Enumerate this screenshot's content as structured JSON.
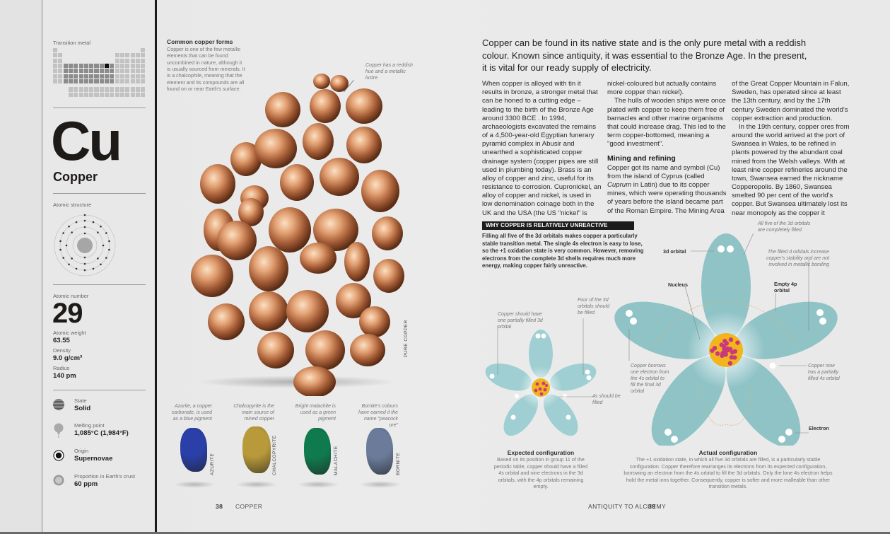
{
  "sidebar": {
    "category_label": "Transition metal",
    "symbol": "Cu",
    "element_name": "Copper",
    "atomic_structure_label": "Atomic structure",
    "electron_shells": [
      2,
      8,
      18,
      1
    ],
    "atomic_number_label": "Atomic number",
    "atomic_number": "29",
    "atomic_weight_label": "Atomic weight",
    "atomic_weight": "63.55",
    "density_label": "Density",
    "density": "9.0 g/cm³",
    "radius_label": "Radius",
    "radius": "140 pm",
    "properties": [
      {
        "icon": "solid-state-icon",
        "label": "State",
        "value": "Solid"
      },
      {
        "icon": "thermometer-icon",
        "label": "Melting point",
        "value": "1,085°C (1,984°F)"
      },
      {
        "icon": "origin-target-icon",
        "label": "Origin",
        "value": "Supernovae"
      },
      {
        "icon": "earth-crust-icon",
        "label": "Proportion in Earth's crust",
        "value": "60 ppm"
      }
    ]
  },
  "left_page": {
    "common_forms_title": "Common copper forms",
    "common_forms_text": "Copper is one of the few metallic elements that can be found uncombined in nature, although it is usually sourced from minerals. It is a chalcophile, meaning that the element and its compounds are all found on or near Earth's surface.",
    "nugget_caption": "Copper has a reddish hue and a metallic lustre",
    "nugget_label": "PURE COPPER",
    "minerals": [
      {
        "name": "AZURITE",
        "caption": "Azurite, a copper carbonate, is used as a blue pigment",
        "color": "#2a3fa8"
      },
      {
        "name": "CHALCOPYRITE",
        "caption": "Chalcopyrite is the main source of mined copper",
        "color": "#b89a3a"
      },
      {
        "name": "MALACHITE",
        "caption": "Bright malachite is used as a green pigment",
        "color": "#0f7a4e"
      },
      {
        "name": "BORNITE",
        "caption": "Bornite's colours have earned it the name \"peacock ore\"",
        "color": "#6a7c9a"
      }
    ],
    "page_number": "38",
    "running_head": "COPPER"
  },
  "right_page": {
    "intro": "Copper can be found in its native state and is the only pure metal with a reddish colour. Known since antiquity, it was essential to the Bronze Age. In the present, it is vital for our ready supply of electricity.",
    "col1": "When copper is alloyed with tin it results in bronze, a stronger metal that can be honed to a cutting edge – leading to the birth of the Bronze Age around 3300 BCE . In 1994, archaeologists excavated the remains of a 4,500-year-old Egyptian funerary pyramid complex in Abusir and unearthed a sophisticated copper drainage system (copper pipes are still used in plumbing today). Brass is an alloy of copper and zinc, useful for its resistance to corrosion. Cupronickel, an alloy of copper and nickel, is used in low denomination coinage both in the UK and the USA (the US \"nickel\" is",
    "col2_p1": "nickel-coloured but actually contains more copper than nickel).",
    "col2_p2": "The hulls of wooden ships were once plated with copper to keep them free of barnacles and other marine organisms that could increase drag. This led to the term copper-bottomed, meaning a \"good investment\".",
    "mining_heading": "Mining and refining",
    "col2_p3_a": "Copper got its name and symbol (Cu) from the island of Cyprus (called ",
    "col2_p3_italic": "Cuprum",
    "col2_p3_b": " in Latin) due to its copper mines, which were operating thousands of years before the island became part of the Roman Empire. The Mining Area",
    "col3_p1": "of the Great Copper Mountain in Falun, Sweden, has operated since at least the 13th century, and by the 17th century Sweden dominated the world's copper extraction and production.",
    "col3_p2": "In the 19th century, copper ores from around the world arrived at the port of Swansea in Wales, to be refined in plants powered by the abundant coal mined from the Welsh valleys. With at least nine copper refineries around the town, Swansea earned the nickname Copperopolis. By 1860, Swansea smelted 90 per cent of the world's copper. But Swansea ultimately lost its near monopoly as the copper it",
    "why_title": "WHY COPPER IS RELATIVELY UNREACTIVE",
    "why_text": "Filling all five of the 3d orbitals makes copper a particularly stable transition metal. The single 4s electron is easy to lose, so the +1 oxidation state is very common. However, removing electrons from the complete 3d shells requires much more energy, making copper fairly unreactive.",
    "small_diagram": {
      "ann_partial": "Copper should have one partially filled 3d orbital",
      "ann_four": "Four of the 3d orbitals should be filled",
      "ann_4s": "4s should be filled",
      "title": "Expected configuration",
      "text": "Based on its position in group 11 of the periodic table, copper should have a filled 4s orbital and nine electrons in the 3d orbitals, with the 4p orbitals remaining empty."
    },
    "large_diagram": {
      "ann_all_five": "All five of the 3d orbitals are completely filled",
      "ann_3d": "3d orbital",
      "ann_stability": "The filled d orbitals increase copper's stability and are not involved in metallic bonding",
      "ann_nucleus": "Nucleus",
      "ann_4p": "Empty 4p orbital",
      "ann_borrows": "Copper borrows one electron from the 4s orbital to fill the final 3d orbital",
      "ann_now": "Copper now has a partially filled 4s orbital",
      "ann_electron": "Electron",
      "title": "Actual configuration",
      "text": "The +1 oxidation state, in which all five 3d orbitals are filled, is a particularly stable configuration. Copper therefore rearranges its electrons from its expected configuration, borrowing an electron from the 4s orbital to fill the 3d orbitals. Only the lone 4s electron helps hold the metal ions together. Consequently, copper is softer and more malleable than other transition metals."
    },
    "running_head": "ANTIQUITY TO ALCHEMY",
    "page_number": "39"
  },
  "colors": {
    "orbital": "#8fc3c6",
    "nucleus_pink": "#c93a7a",
    "nucleus_yellow": "#f2b51c",
    "copper": "#c9865a",
    "header_bar": "#1c1c1c"
  }
}
